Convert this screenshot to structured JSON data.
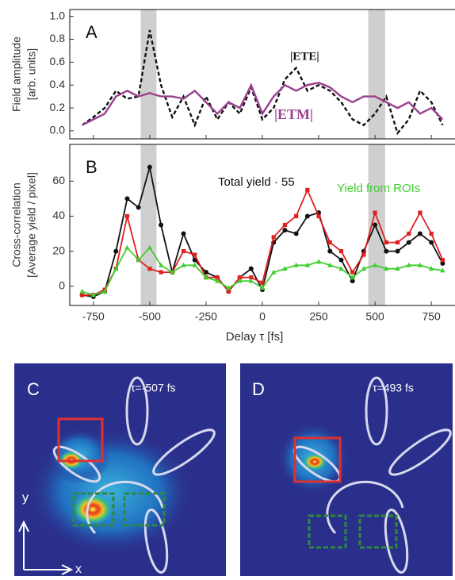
{
  "chart_data": [
    {
      "type": "line",
      "panel_label": "A",
      "ylabel": [
        "Field amplitude",
        "[arb. units]"
      ],
      "x": [
        -800,
        -750,
        -700,
        -650,
        -600,
        -550,
        -500,
        -450,
        -400,
        -350,
        -300,
        -250,
        -200,
        -150,
        -100,
        -50,
        0,
        50,
        100,
        150,
        200,
        250,
        300,
        350,
        400,
        450,
        500,
        550,
        600,
        650,
        700,
        750,
        800
      ],
      "xlim": [
        -855,
        855
      ],
      "ylim": [
        -0.07,
        1.06
      ],
      "yticks": [
        {
          "value": 0,
          "label": "0.0"
        },
        0.2,
        0.4,
        0.6,
        0.8,
        {
          "value": 1,
          "label": "1.0"
        }
      ],
      "highlight_bands": [
        [
          -540,
          -470
        ],
        [
          470,
          545
        ]
      ],
      "series": [
        {
          "name": "|ETE|",
          "color": "#111111",
          "dashed": true,
          "values": [
            0.05,
            0.12,
            0.2,
            0.35,
            0.28,
            0.3,
            0.88,
            0.4,
            0.12,
            0.3,
            0.05,
            0.3,
            0.1,
            0.25,
            0.15,
            0.38,
            0.1,
            0.2,
            0.45,
            0.55,
            0.35,
            0.4,
            0.35,
            0.25,
            0.1,
            0.05,
            0.15,
            0.3,
            -0.02,
            0.1,
            0.35,
            0.25,
            0.05
          ]
        },
        {
          "name": "|ETM|",
          "color": "#9b3f8e",
          "dashed": false,
          "values": [
            0.05,
            0.1,
            0.15,
            0.3,
            0.35,
            0.3,
            0.33,
            0.3,
            0.3,
            0.28,
            0.35,
            0.25,
            0.15,
            0.25,
            0.2,
            0.4,
            0.15,
            0.3,
            0.4,
            0.35,
            0.4,
            0.42,
            0.38,
            0.3,
            0.25,
            0.3,
            0.3,
            0.25,
            0.2,
            0.25,
            0.15,
            0.2,
            0.1
          ]
        }
      ]
    },
    {
      "type": "line",
      "panel_label": "B",
      "ylabel": [
        "Cross-correlation",
        "[Average yield / pixel]"
      ],
      "xlabel": "Delay τ [fs]",
      "x": [
        -800,
        -750,
        -700,
        -650,
        -600,
        -550,
        -500,
        -450,
        -400,
        -350,
        -300,
        -250,
        -200,
        -150,
        -100,
        -50,
        0,
        50,
        100,
        150,
        200,
        250,
        300,
        350,
        400,
        450,
        500,
        550,
        600,
        650,
        700,
        750,
        800
      ],
      "xlim": [
        -855,
        855
      ],
      "ylim": [
        -11,
        81
      ],
      "xticks": [
        -750,
        -500,
        -250,
        0,
        250,
        500,
        750
      ],
      "yticks": [
        0,
        20,
        40,
        60
      ],
      "highlight_bands": [
        [
          -540,
          -470
        ],
        [
          470,
          545
        ]
      ],
      "series": [
        {
          "name": "Total yield · 55",
          "color": "#111111",
          "marker": "circle",
          "values": [
            -5,
            -6,
            -3,
            20,
            50,
            45,
            68,
            35,
            8,
            30,
            15,
            8,
            5,
            -3,
            5,
            10,
            -2,
            25,
            32,
            30,
            40,
            42,
            20,
            15,
            3,
            20,
            35,
            20,
            20,
            25,
            30,
            25,
            13
          ]
        },
        {
          "color": "#e02020",
          "marker": "square",
          "values": [
            -5,
            -5,
            -2,
            10,
            40,
            15,
            10,
            8,
            8,
            20,
            18,
            5,
            5,
            -3,
            5,
            5,
            2,
            28,
            35,
            40,
            55,
            40,
            25,
            20,
            8,
            18,
            42,
            25,
            25,
            30,
            42,
            30,
            15
          ]
        },
        {
          "name": "Yield from ROIs",
          "color": "#3fcf2f",
          "marker": "triangle",
          "values": [
            -3,
            -5,
            -3,
            10,
            22,
            15,
            22,
            12,
            8,
            12,
            12,
            5,
            3,
            -1,
            3,
            3,
            -1,
            8,
            10,
            12,
            12,
            14,
            12,
            10,
            5,
            10,
            12,
            10,
            10,
            12,
            12,
            10,
            9
          ]
        }
      ]
    }
  ],
  "image_panels": [
    {
      "label": "C",
      "annotation": "τ=-507 fs"
    },
    {
      "label": "D",
      "annotation": "τ=493 fs"
    }
  ],
  "axis_arrows": {
    "y": "y",
    "x": "x"
  }
}
